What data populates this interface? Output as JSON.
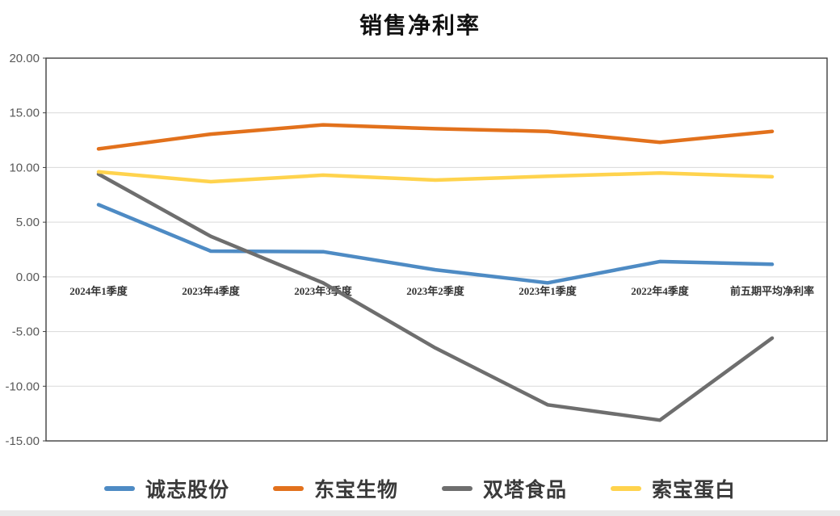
{
  "page": {
    "background": "#ffffff",
    "footer_strip_color": "#e9e9e9"
  },
  "chart_data": {
    "type": "line",
    "title": "销售净利率",
    "categories": [
      "2024年1季度",
      "2023年4季度",
      "2023年3季度",
      "2023年2季度",
      "2023年1季度",
      "2022年4季度",
      "前五期平均净利率"
    ],
    "series": [
      {
        "name": "诚志股份",
        "color": "#4E8BC4",
        "values": [
          6.6,
          2.35,
          2.3,
          0.65,
          -0.55,
          1.4,
          1.15
        ]
      },
      {
        "name": "东宝生物",
        "color": "#E2711C",
        "values": [
          11.7,
          13.05,
          13.9,
          13.55,
          13.3,
          12.3,
          13.3
        ]
      },
      {
        "name": "双塔食品",
        "color": "#6E6E6E",
        "values": [
          9.4,
          3.7,
          -0.55,
          -6.5,
          -11.7,
          -13.1,
          -5.6
        ]
      },
      {
        "name": "索宝蛋白",
        "color": "#FFD34D",
        "values": [
          9.6,
          8.7,
          9.3,
          8.85,
          9.2,
          9.5,
          9.15
        ]
      }
    ],
    "ylim": [
      -15,
      20
    ],
    "ytick_step": 5,
    "ytick_labels": [
      "20.00",
      "15.00",
      "10.00",
      "5.00",
      "0.00",
      "-5.00",
      "-10.00",
      "-15.00"
    ],
    "grid": true,
    "legend_position": "bottom",
    "axis_color": "#3f3f3f",
    "grid_color": "#d9d9d9",
    "tick_label_color": "#595959",
    "category_label_color": "#333333"
  }
}
